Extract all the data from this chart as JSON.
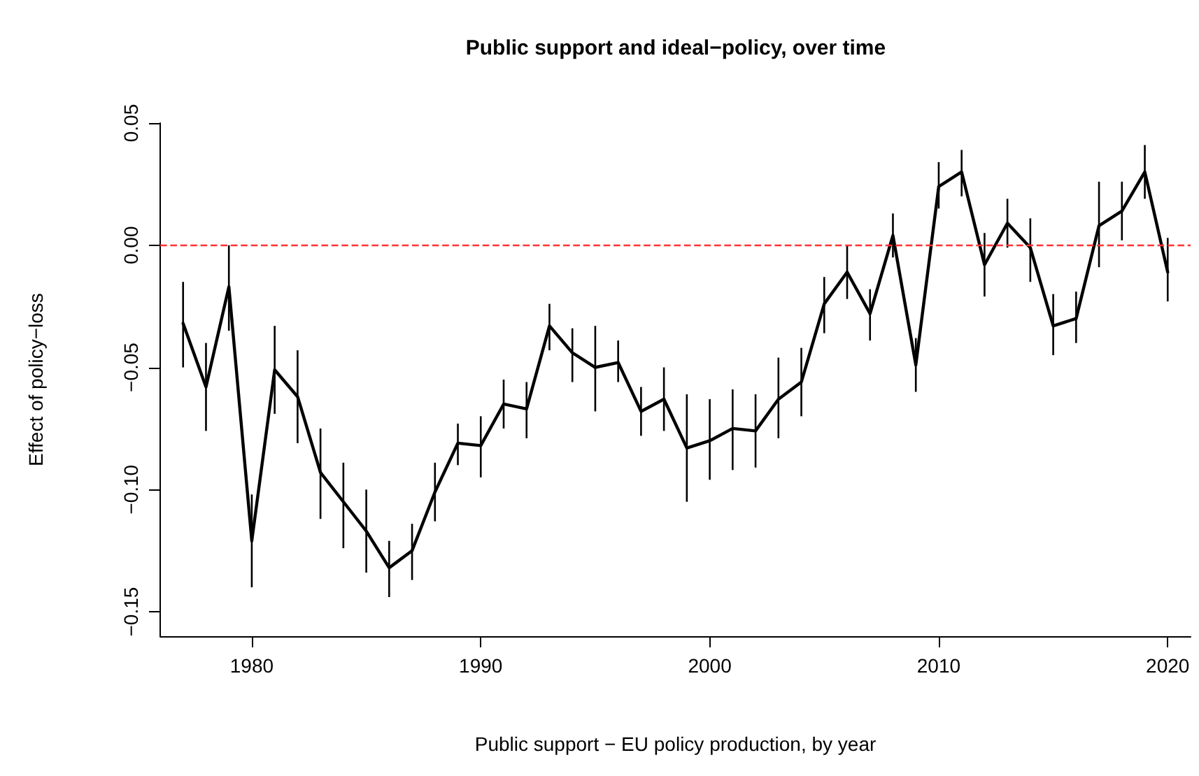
{
  "chart_data": {
    "type": "line",
    "title": "Public support and ideal−policy, over time",
    "xlabel": "Public support − EU policy production, by year",
    "ylabel": "Effect of policy−loss",
    "x": [
      1977,
      1978,
      1979,
      1980,
      1981,
      1982,
      1983,
      1984,
      1985,
      1986,
      1987,
      1988,
      1989,
      1990,
      1991,
      1992,
      1993,
      1994,
      1995,
      1996,
      1997,
      1998,
      1999,
      2000,
      2001,
      2002,
      2003,
      2004,
      2005,
      2006,
      2007,
      2008,
      2009,
      2010,
      2011,
      2012,
      2013,
      2014,
      2015,
      2016,
      2017,
      2018,
      2019,
      2020
    ],
    "series": [
      {
        "color": "#000000",
        "values": [
          -0.032,
          -0.058,
          -0.017,
          -0.121,
          -0.051,
          -0.062,
          -0.093,
          -0.105,
          -0.117,
          -0.132,
          -0.125,
          -0.101,
          -0.081,
          -0.082,
          -0.065,
          -0.067,
          -0.033,
          -0.044,
          -0.05,
          -0.048,
          -0.068,
          -0.063,
          -0.083,
          -0.08,
          -0.075,
          -0.076,
          -0.063,
          -0.056,
          -0.024,
          -0.011,
          -0.028,
          0.004,
          -0.049,
          0.024,
          0.03,
          -0.008,
          0.009,
          -0.001,
          -0.033,
          -0.03,
          0.008,
          0.014,
          0.03,
          -0.011
        ],
        "errors": [
          [
            -0.05,
            -0.015
          ],
          [
            -0.076,
            -0.04
          ],
          [
            -0.035,
            0.0
          ],
          [
            -0.14,
            -0.102
          ],
          [
            -0.069,
            -0.033
          ],
          [
            -0.081,
            -0.043
          ],
          [
            -0.112,
            -0.075
          ],
          [
            -0.124,
            -0.089
          ],
          [
            -0.134,
            -0.1
          ],
          [
            -0.144,
            -0.121
          ],
          [
            -0.137,
            -0.114
          ],
          [
            -0.113,
            -0.089
          ],
          [
            -0.09,
            -0.073
          ],
          [
            -0.095,
            -0.07
          ],
          [
            -0.075,
            -0.055
          ],
          [
            -0.079,
            -0.056
          ],
          [
            -0.043,
            -0.024
          ],
          [
            -0.056,
            -0.034
          ],
          [
            -0.068,
            -0.033
          ],
          [
            -0.056,
            -0.039
          ],
          [
            -0.078,
            -0.058
          ],
          [
            -0.076,
            -0.05
          ],
          [
            -0.105,
            -0.061
          ],
          [
            -0.096,
            -0.063
          ],
          [
            -0.092,
            -0.059
          ],
          [
            -0.091,
            -0.061
          ],
          [
            -0.079,
            -0.046
          ],
          [
            -0.07,
            -0.042
          ],
          [
            -0.036,
            -0.013
          ],
          [
            -0.022,
            0.0
          ],
          [
            -0.039,
            -0.018
          ],
          [
            -0.005,
            0.013
          ],
          [
            -0.06,
            -0.038
          ],
          [
            0.015,
            0.034
          ],
          [
            0.02,
            0.039
          ],
          [
            -0.021,
            0.005
          ],
          [
            -0.001,
            0.019
          ],
          [
            -0.015,
            0.011
          ],
          [
            -0.045,
            -0.02
          ],
          [
            -0.04,
            -0.019
          ],
          [
            -0.009,
            0.026
          ],
          [
            0.002,
            0.026
          ],
          [
            0.019,
            0.041
          ],
          [
            -0.023,
            0.003
          ]
        ]
      }
    ],
    "xlim": [
      1976,
      2021
    ],
    "xticks": [
      1980,
      1990,
      2000,
      2010,
      2020
    ],
    "ylim": [
      -0.16,
      0.05
    ],
    "yticks": [
      {
        "value": -0.15,
        "label": "−0.15"
      },
      {
        "value": -0.1,
        "label": "−0.10"
      },
      {
        "value": -0.05,
        "label": "−0.05"
      },
      {
        "value": 0,
        "label": "0.00"
      },
      {
        "value": 0.05,
        "label": "0.05"
      }
    ],
    "ref_lines": [
      {
        "axis": "y",
        "value": 0,
        "color": "#ff3333",
        "line_style": "dashed"
      }
    ],
    "grid": false,
    "marker": "none",
    "line_style": "solid"
  }
}
